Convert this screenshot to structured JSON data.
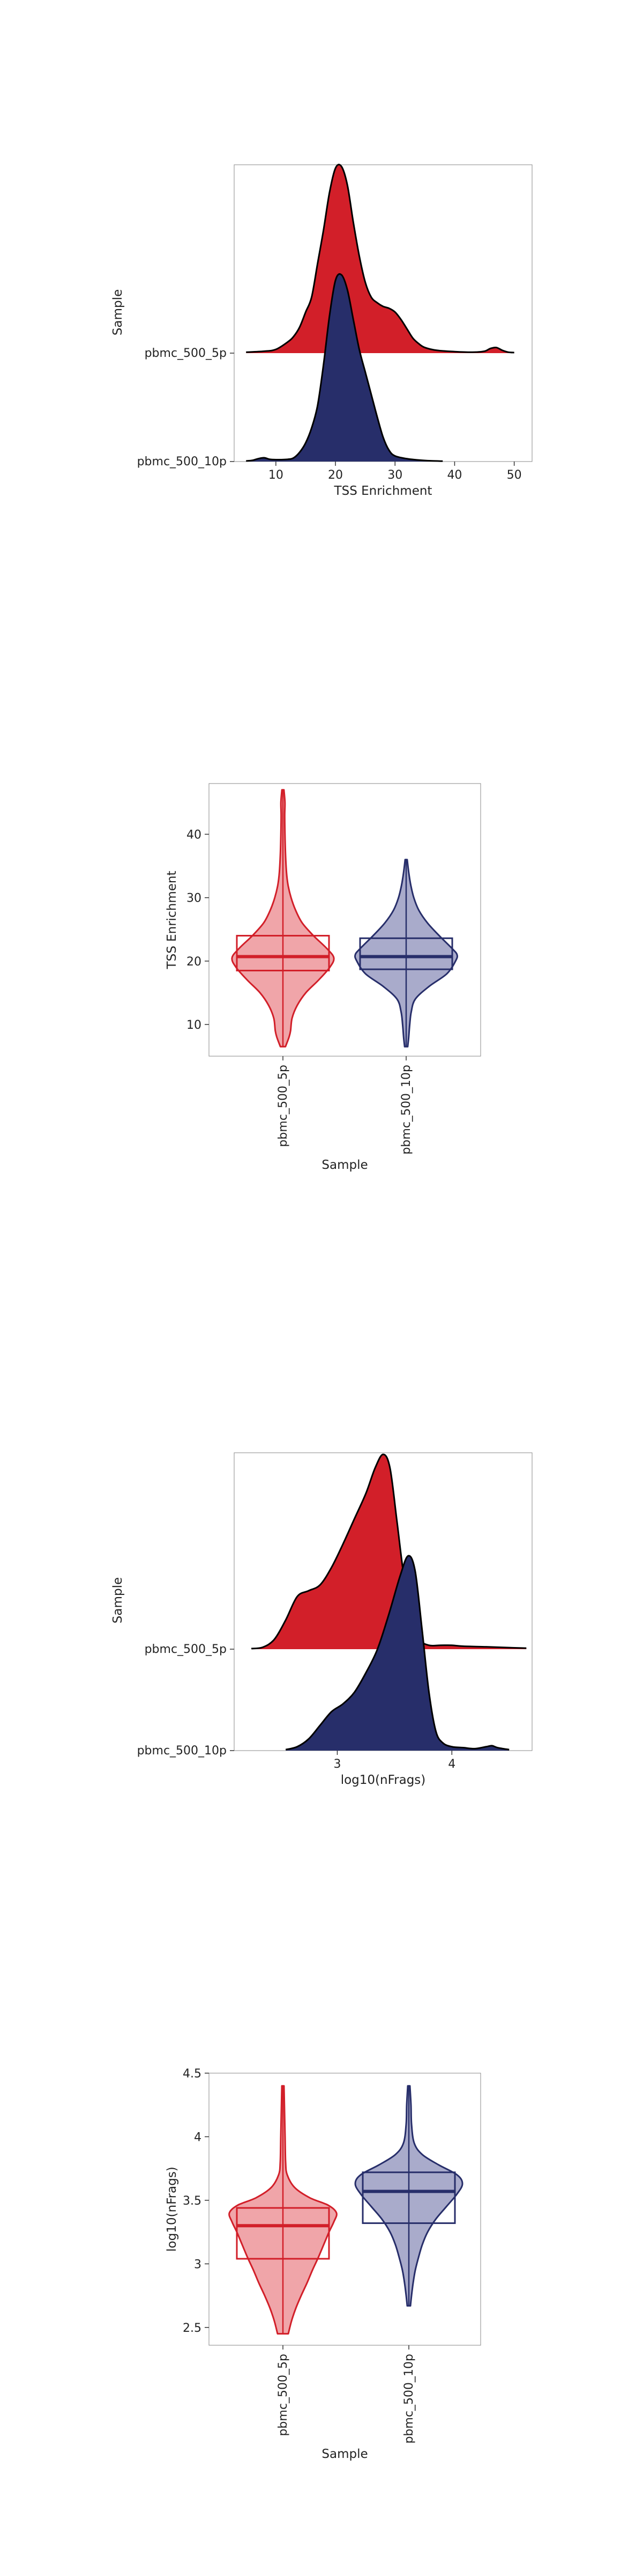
{
  "colors": {
    "red": "#d21f29",
    "navy": "#272e6a",
    "red_light": "#f0a5a9",
    "navy_light": "#a9abcb"
  },
  "chart_data": [
    {
      "type": "ridgeline",
      "ylabel": "Sample",
      "xlabel": "TSS Enrichment",
      "xlim": [
        3,
        53
      ],
      "xticks": [
        10,
        20,
        30,
        40,
        50
      ],
      "series": [
        {
          "name": "pbmc_500_5p",
          "color": "red",
          "density": [
            [
              5,
              0.005
            ],
            [
              8,
              0.01
            ],
            [
              10,
              0.02
            ],
            [
              12,
              0.06
            ],
            [
              13,
              0.09
            ],
            [
              14,
              0.14
            ],
            [
              15,
              0.22
            ],
            [
              16,
              0.3
            ],
            [
              17,
              0.48
            ],
            [
              18,
              0.66
            ],
            [
              19,
              0.86
            ],
            [
              20,
              0.99
            ],
            [
              21,
              1.0
            ],
            [
              22,
              0.9
            ],
            [
              23,
              0.7
            ],
            [
              24,
              0.52
            ],
            [
              25,
              0.38
            ],
            [
              26,
              0.3
            ],
            [
              27,
              0.27
            ],
            [
              28,
              0.25
            ],
            [
              29,
              0.24
            ],
            [
              30,
              0.22
            ],
            [
              31,
              0.18
            ],
            [
              32,
              0.13
            ],
            [
              33,
              0.08
            ],
            [
              34,
              0.05
            ],
            [
              35,
              0.03
            ],
            [
              37,
              0.015
            ],
            [
              40,
              0.008
            ],
            [
              43,
              0.005
            ],
            [
              45,
              0.01
            ],
            [
              46,
              0.025
            ],
            [
              47,
              0.03
            ],
            [
              48,
              0.015
            ],
            [
              49,
              0.005
            ],
            [
              50,
              0.003
            ]
          ]
        },
        {
          "name": "pbmc_500_10p",
          "color": "navy",
          "density": [
            [
              5,
              0.003
            ],
            [
              6,
              0.006
            ],
            [
              7,
              0.015
            ],
            [
              8,
              0.02
            ],
            [
              9,
              0.012
            ],
            [
              10,
              0.01
            ],
            [
              12,
              0.012
            ],
            [
              13,
              0.02
            ],
            [
              14,
              0.05
            ],
            [
              15,
              0.1
            ],
            [
              16,
              0.18
            ],
            [
              17,
              0.3
            ],
            [
              18,
              0.52
            ],
            [
              19,
              0.78
            ],
            [
              20,
              0.97
            ],
            [
              21,
              1.0
            ],
            [
              22,
              0.92
            ],
            [
              23,
              0.76
            ],
            [
              24,
              0.6
            ],
            [
              25,
              0.48
            ],
            [
              26,
              0.36
            ],
            [
              27,
              0.24
            ],
            [
              28,
              0.13
            ],
            [
              29,
              0.06
            ],
            [
              30,
              0.03
            ],
            [
              32,
              0.015
            ],
            [
              34,
              0.008
            ],
            [
              36,
              0.004
            ],
            [
              38,
              0.002
            ]
          ]
        }
      ]
    },
    {
      "type": "violin",
      "xlabel": "Sample",
      "ylabel": "TSS Enrichment",
      "ylim": [
        5,
        48
      ],
      "yticks": [
        10,
        20,
        30,
        40
      ],
      "categories": [
        "pbmc_500_5p",
        "pbmc_500_10p"
      ],
      "series": [
        {
          "name": "pbmc_500_5p",
          "color": "red",
          "box": {
            "q1": 18.5,
            "median": 20.7,
            "q3": 24,
            "whisker_low": 6.5,
            "whisker_high": 47
          },
          "profile": [
            [
              6.5,
              0.05
            ],
            [
              8,
              0.12
            ],
            [
              9,
              0.15
            ],
            [
              11,
              0.18
            ],
            [
              13,
              0.28
            ],
            [
              15,
              0.45
            ],
            [
              17,
              0.7
            ],
            [
              19,
              0.92
            ],
            [
              20.5,
              1.0
            ],
            [
              22,
              0.86
            ],
            [
              24,
              0.6
            ],
            [
              26,
              0.38
            ],
            [
              28,
              0.25
            ],
            [
              30,
              0.16
            ],
            [
              32,
              0.1
            ],
            [
              34,
              0.07
            ],
            [
              37,
              0.05
            ],
            [
              40,
              0.04
            ],
            [
              43,
              0.035
            ],
            [
              45,
              0.04
            ],
            [
              47,
              0.02
            ]
          ]
        },
        {
          "name": "pbmc_500_10p",
          "color": "navy",
          "box": {
            "q1": 18.7,
            "median": 20.7,
            "q3": 23.6,
            "whisker_low": 6.5,
            "whisker_high": 36
          },
          "profile": [
            [
              6.5,
              0.03
            ],
            [
              8,
              0.05
            ],
            [
              10,
              0.07
            ],
            [
              12,
              0.1
            ],
            [
              14,
              0.18
            ],
            [
              16,
              0.45
            ],
            [
              18,
              0.8
            ],
            [
              20,
              0.97
            ],
            [
              21,
              1.0
            ],
            [
              22,
              0.9
            ],
            [
              24,
              0.65
            ],
            [
              26,
              0.42
            ],
            [
              28,
              0.25
            ],
            [
              30,
              0.15
            ],
            [
              32,
              0.09
            ],
            [
              34,
              0.05
            ],
            [
              36,
              0.02
            ]
          ]
        }
      ]
    },
    {
      "type": "ridgeline",
      "ylabel": "Sample",
      "xlabel": "log10(nFrags)",
      "xlim": [
        2.1,
        4.7
      ],
      "xticks": [
        3,
        4
      ],
      "series": [
        {
          "name": "pbmc_500_5p",
          "color": "red",
          "density": [
            [
              2.25,
              0.003
            ],
            [
              2.35,
              0.01
            ],
            [
              2.45,
              0.05
            ],
            [
              2.55,
              0.15
            ],
            [
              2.65,
              0.27
            ],
            [
              2.75,
              0.3
            ],
            [
              2.85,
              0.33
            ],
            [
              2.95,
              0.42
            ],
            [
              3.05,
              0.54
            ],
            [
              3.15,
              0.67
            ],
            [
              3.25,
              0.8
            ],
            [
              3.33,
              0.93
            ],
            [
              3.4,
              1.0
            ],
            [
              3.46,
              0.93
            ],
            [
              3.52,
              0.66
            ],
            [
              3.58,
              0.38
            ],
            [
              3.65,
              0.16
            ],
            [
              3.72,
              0.05
            ],
            [
              3.8,
              0.02
            ],
            [
              3.9,
              0.02
            ],
            [
              4.0,
              0.02
            ],
            [
              4.1,
              0.015
            ],
            [
              4.3,
              0.012
            ],
            [
              4.5,
              0.008
            ],
            [
              4.65,
              0.005
            ]
          ]
        },
        {
          "name": "pbmc_500_10p",
          "color": "navy",
          "density": [
            [
              2.55,
              0.005
            ],
            [
              2.65,
              0.02
            ],
            [
              2.75,
              0.06
            ],
            [
              2.85,
              0.13
            ],
            [
              2.95,
              0.2
            ],
            [
              3.05,
              0.24
            ],
            [
              3.15,
              0.3
            ],
            [
              3.25,
              0.4
            ],
            [
              3.35,
              0.52
            ],
            [
              3.45,
              0.7
            ],
            [
              3.55,
              0.9
            ],
            [
              3.62,
              1.0
            ],
            [
              3.68,
              0.92
            ],
            [
              3.74,
              0.62
            ],
            [
              3.8,
              0.3
            ],
            [
              3.86,
              0.1
            ],
            [
              3.92,
              0.04
            ],
            [
              4.0,
              0.02
            ],
            [
              4.1,
              0.015
            ],
            [
              4.2,
              0.01
            ],
            [
              4.3,
              0.02
            ],
            [
              4.35,
              0.025
            ],
            [
              4.4,
              0.015
            ],
            [
              4.5,
              0.005
            ]
          ]
        }
      ]
    },
    {
      "type": "violin",
      "xlabel": "Sample",
      "ylabel": "log10(nFrags)",
      "ylim": [
        2.36,
        4.5
      ],
      "yticks": [
        2.5,
        3.0,
        3.5,
        4.0,
        4.5
      ],
      "categories": [
        "pbmc_500_5p",
        "pbmc_500_10p"
      ],
      "series": [
        {
          "name": "pbmc_500_5p",
          "color": "red",
          "box": {
            "q1": 3.04,
            "median": 3.3,
            "q3": 3.44,
            "whisker_low": 2.45,
            "whisker_high": 4.4
          },
          "profile": [
            [
              2.45,
              0.1
            ],
            [
              2.55,
              0.16
            ],
            [
              2.65,
              0.24
            ],
            [
              2.75,
              0.34
            ],
            [
              2.85,
              0.45
            ],
            [
              2.95,
              0.55
            ],
            [
              3.05,
              0.66
            ],
            [
              3.15,
              0.76
            ],
            [
              3.25,
              0.86
            ],
            [
              3.33,
              0.95
            ],
            [
              3.4,
              1.0
            ],
            [
              3.46,
              0.85
            ],
            [
              3.52,
              0.5
            ],
            [
              3.6,
              0.22
            ],
            [
              3.7,
              0.08
            ],
            [
              3.8,
              0.05
            ],
            [
              4.0,
              0.04
            ],
            [
              4.2,
              0.03
            ],
            [
              4.4,
              0.02
            ]
          ]
        },
        {
          "name": "pbmc_500_10p",
          "color": "navy",
          "box": {
            "q1": 3.32,
            "median": 3.57,
            "q3": 3.72,
            "whisker_low": 2.67,
            "whisker_high": 4.4
          },
          "profile": [
            [
              2.67,
              0.03
            ],
            [
              2.75,
              0.05
            ],
            [
              2.85,
              0.08
            ],
            [
              2.95,
              0.12
            ],
            [
              3.05,
              0.18
            ],
            [
              3.15,
              0.25
            ],
            [
              3.25,
              0.35
            ],
            [
              3.35,
              0.5
            ],
            [
              3.45,
              0.7
            ],
            [
              3.55,
              0.9
            ],
            [
              3.63,
              1.0
            ],
            [
              3.7,
              0.9
            ],
            [
              3.78,
              0.55
            ],
            [
              3.86,
              0.25
            ],
            [
              3.95,
              0.1
            ],
            [
              4.1,
              0.05
            ],
            [
              4.25,
              0.04
            ],
            [
              4.4,
              0.02
            ]
          ]
        }
      ]
    }
  ]
}
